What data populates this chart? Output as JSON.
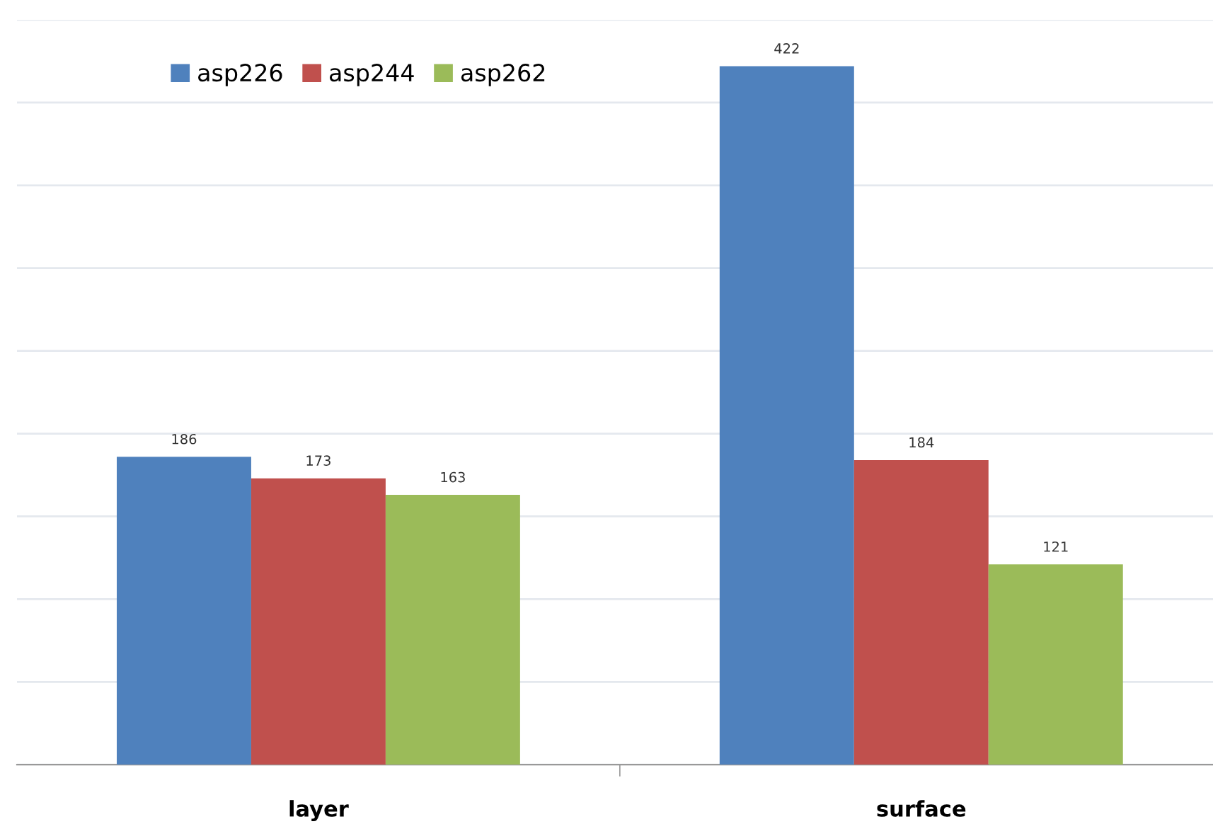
{
  "chart_data": {
    "type": "bar",
    "categories": [
      "layer",
      "surface"
    ],
    "series": [
      {
        "name": "asp226",
        "color": "#4f81bd",
        "values": [
          186,
          422
        ]
      },
      {
        "name": "asp244",
        "color": "#c0504d",
        "values": [
          173,
          184
        ]
      },
      {
        "name": "asp262",
        "color": "#9bbb59",
        "values": [
          163,
          121
        ]
      }
    ],
    "ylim": [
      0,
      450
    ],
    "yticks": [
      {
        "value": 0,
        "label": null
      },
      {
        "value": 50,
        "label": null
      },
      {
        "value": 100,
        "label": null
      },
      {
        "value": 150,
        "label": null
      },
      {
        "value": 200,
        "label": null
      },
      {
        "value": 250,
        "label": null
      },
      {
        "value": 300,
        "label": null
      },
      {
        "value": 350,
        "label": null
      },
      {
        "value": 400,
        "label": null
      },
      {
        "value": 450,
        "label": null
      }
    ],
    "tick_labels": "x",
    "grid": "y",
    "legend": "top left",
    "data_labels": true
  }
}
